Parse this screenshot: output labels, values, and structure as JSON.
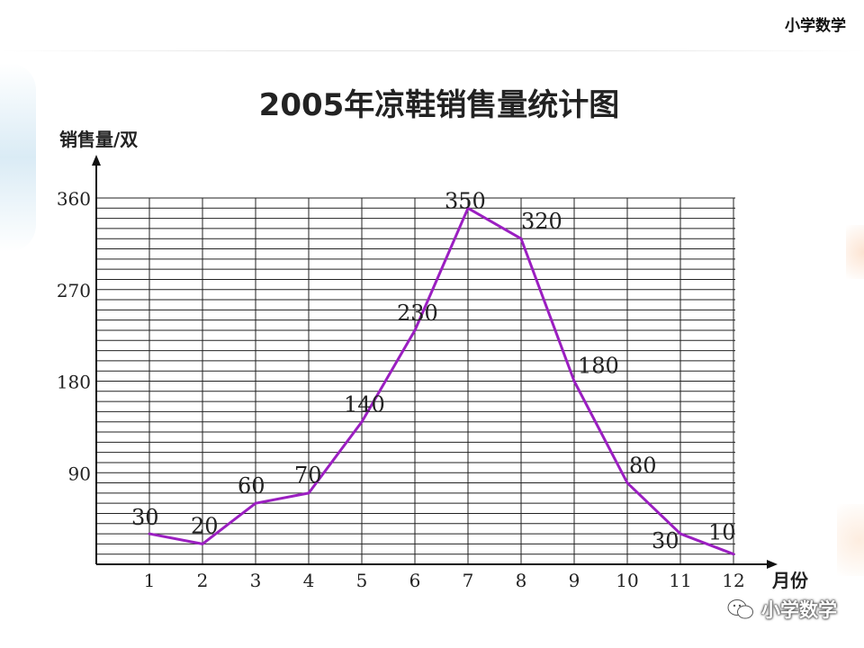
{
  "header": {
    "brand": "小学数学"
  },
  "watermark": {
    "icon": "wechat-icon",
    "text": "小学数学"
  },
  "chart_data": {
    "type": "line",
    "title": "2005年凉鞋销售量统计图",
    "ylabel": "销售量/双",
    "xlabel": "月份",
    "x": [
      1,
      2,
      3,
      4,
      5,
      6,
      7,
      8,
      9,
      10,
      11,
      12
    ],
    "series": [
      {
        "values": [
          30,
          20,
          60,
          70,
          140,
          230,
          350,
          320,
          180,
          80,
          30,
          10
        ],
        "color": "#9b1fc1"
      }
    ],
    "data_labels": [
      "30",
      "20",
      "60",
      "70",
      "140",
      "230",
      "350",
      "320",
      "180",
      "80",
      "30",
      "10"
    ],
    "y_ticks": [
      90,
      180,
      270,
      360
    ],
    "ylim": [
      0,
      360
    ],
    "xlim": [
      0,
      12
    ],
    "minor_grid_step": 10,
    "grid": true
  }
}
